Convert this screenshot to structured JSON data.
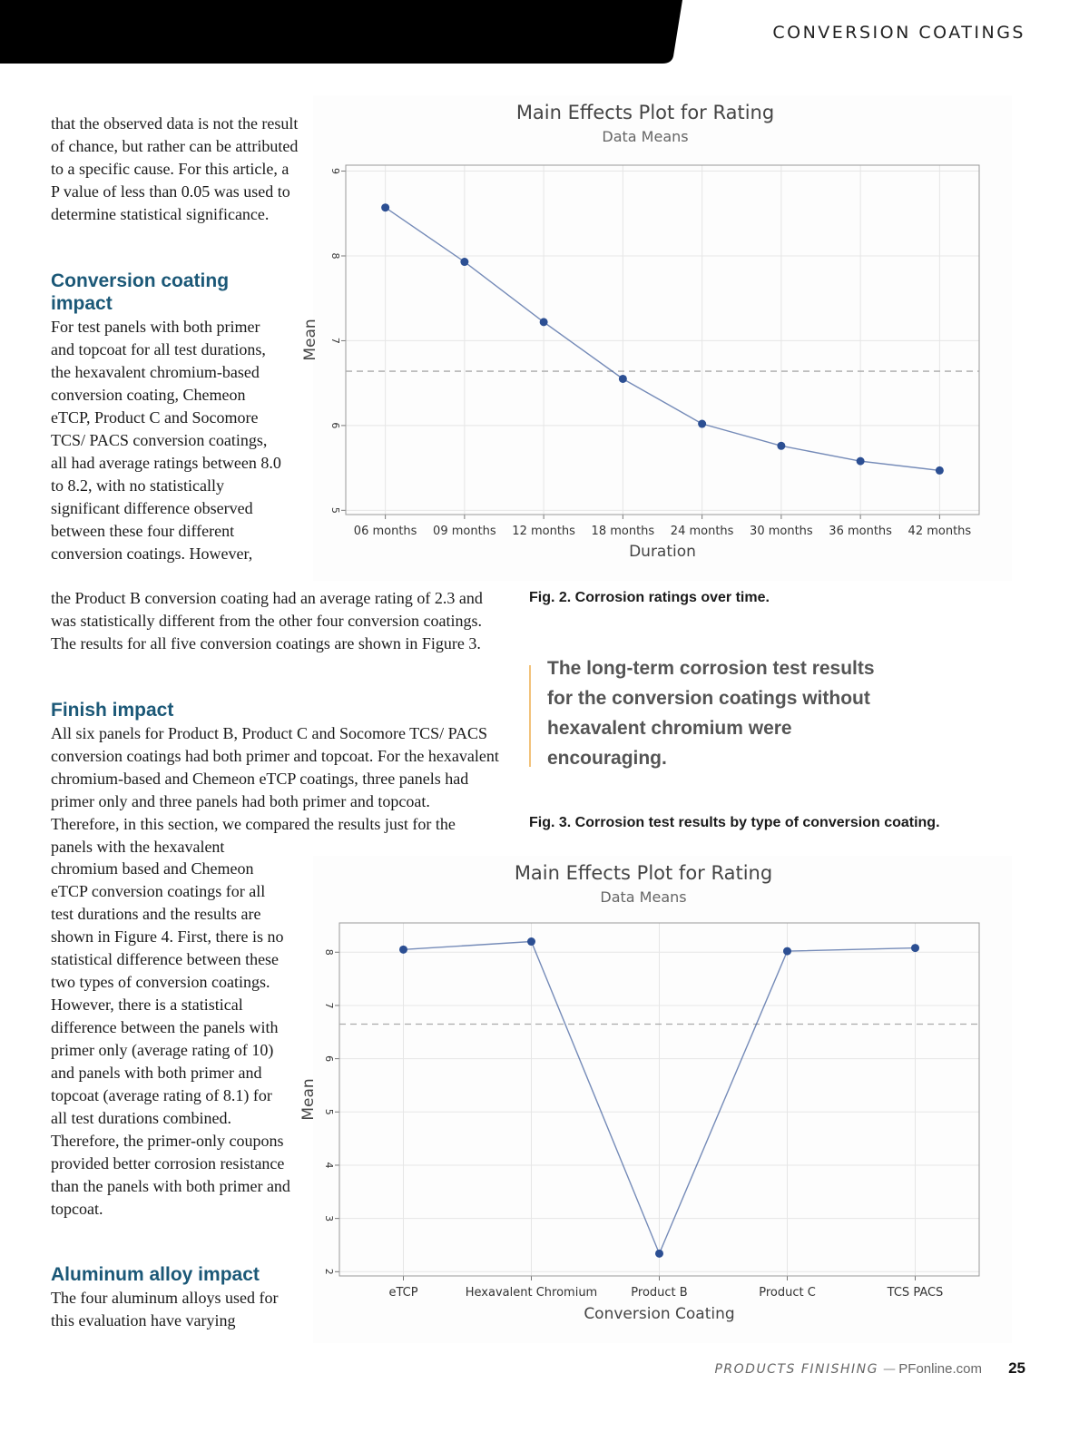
{
  "header": {
    "section": "CONVERSION COATINGS"
  },
  "article": {
    "intro": "that the observed data is not the result of chance, but rather can be attributed to a specific cause. For this article, a P value of less than 0.05 was used to determine statistical significance.",
    "heading_1": "Conversion coating impact",
    "para_1a": "For test panels with both primer and topcoat for all test durations, the hexavalent chromium-based conversion coating, Chemeon eTCP, Product C and Socomore TCS/ PACS conversion coatings, all had average ratings between 8.0 to 8.2, with no statistically significant difference observed between these four different conversion coatings. However,",
    "para_1b": "the Product B conversion coating had an average rating of 2.3 and was statistically different from the other four conversion coatings. The results for all five conversion coatings are shown in Figure 3.",
    "heading_2": "Finish impact",
    "para_2a": "All six panels for Product B, Product C and Socomore TCS/ PACS conversion coatings had both primer and topcoat. For the hexavalent chromium-based and Chemeon eTCP coatings, three panels had primer only and three panels had both primer and topcoat. Therefore, in this section, we compared the results just for the panels with the hexavalent",
    "para_2b": "chromium based and Chemeon eTCP conversion coatings for all test durations and the results are shown in Figure 4. First, there is no statistical difference between these two types of conversion coatings. However, there is a statistical difference between the panels with primer only (average rating of 10) and panels with both primer and topcoat (average rating of 8.1) for all test durations combined. Therefore, the primer-only coupons provided better corrosion resistance than the panels with both primer and topcoat.",
    "heading_3": "Aluminum alloy impact",
    "para_3": "The four aluminum alloys used for this evaluation have varying"
  },
  "captions": {
    "fig2": "Fig. 2. Corrosion ratings over time.",
    "fig3": "Fig. 3. Corrosion test results by type of conversion coating."
  },
  "quote": "The long-term corrosion test results for the conversion coatings without hexavalent chromium were encouraging.",
  "footer": {
    "publication": "PRODUCTS FINISHING",
    "separator": "—",
    "site": "PFonline.com",
    "page": 25
  },
  "chart_data": [
    {
      "type": "line",
      "title": "Main Effects Plot for Rating",
      "subtitle": "Data Means",
      "x_label": "Duration",
      "y_label": "Mean",
      "categories": [
        "06 months",
        "09 months",
        "12 months",
        "18 months",
        "24 months",
        "30 months",
        "36 months",
        "42 months"
      ],
      "values": [
        8.57,
        7.93,
        7.22,
        6.55,
        6.02,
        5.76,
        5.58,
        5.47
      ],
      "color": "#2c4f93",
      "ylim": [
        4.95,
        9.07
      ],
      "yticks": [
        5,
        6,
        7,
        8,
        9
      ],
      "grid": true,
      "mean_line": 6.64
    },
    {
      "type": "line",
      "title": "Main Effects Plot for Rating",
      "subtitle": "Data Means",
      "x_label": "Conversion Coating",
      "y_label": "Mean",
      "categories": [
        "eTCP",
        "Hexavalent Chromium",
        "Product B",
        "Product C",
        "TCS PACS"
      ],
      "values": [
        8.05,
        8.2,
        2.34,
        8.02,
        8.08
      ],
      "color": "#2c4f93",
      "ylim": [
        1.92,
        8.55
      ],
      "yticks": [
        2,
        3,
        4,
        5,
        6,
        7,
        8
      ],
      "grid": true,
      "mean_line": 6.65
    }
  ]
}
